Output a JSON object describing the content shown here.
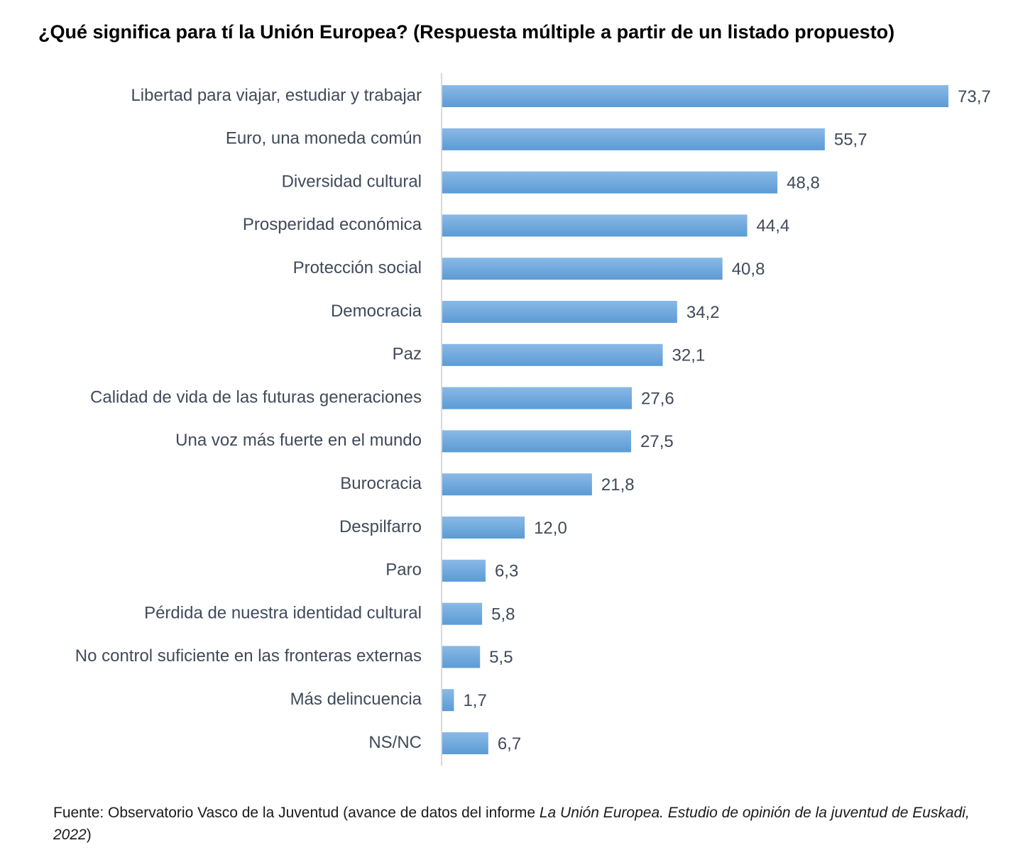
{
  "chart_data": {
    "type": "bar",
    "orientation": "horizontal",
    "title": "¿Qué significa para tí la Unión Europea? (Respuesta múltiple a partir de un listado propuesto)",
    "categories": [
      "Libertad para viajar, estudiar y trabajar",
      "Euro, una moneda común",
      "Diversidad cultural",
      "Prosperidad económica",
      "Protección social",
      "Democracia",
      "Paz",
      "Calidad de vida de las futuras generaciones",
      "Una voz más fuerte en el mundo",
      "Burocracia",
      "Despilfarro",
      "Paro",
      "Pérdida de nuestra identidad cultural",
      "No control suficiente en las fronteras externas",
      "Más delincuencia",
      "NS/NC"
    ],
    "values": [
      73.7,
      55.7,
      48.8,
      44.4,
      40.8,
      34.2,
      32.1,
      27.6,
      27.5,
      21.8,
      12.0,
      6.3,
      5.8,
      5.5,
      1.7,
      6.7
    ],
    "value_labels": [
      "73,7",
      "55,7",
      "48,8",
      "44,4",
      "40,8",
      "34,2",
      "32,1",
      "27,6",
      "27,5",
      "21,8",
      "12,0",
      "6,3",
      "5,8",
      "5,5",
      "1,7",
      "6,7"
    ],
    "xlim": [
      0,
      73.7
    ],
    "xlabel": "",
    "ylabel": "",
    "grid": false,
    "legend": "none",
    "bar_color": "#5b9bd5",
    "bar_color_light": "#8ab9e6",
    "label_color": "#404a5a",
    "axis_color": "#d9d9d9"
  },
  "source": {
    "prefix": "Fuente: Observatorio Vasco de la Juventud (avance de datos del informe ",
    "italic": "La Unión Europea. Estudio de opinión de la juventud de Euskadi, 2022",
    "suffix": ")"
  }
}
